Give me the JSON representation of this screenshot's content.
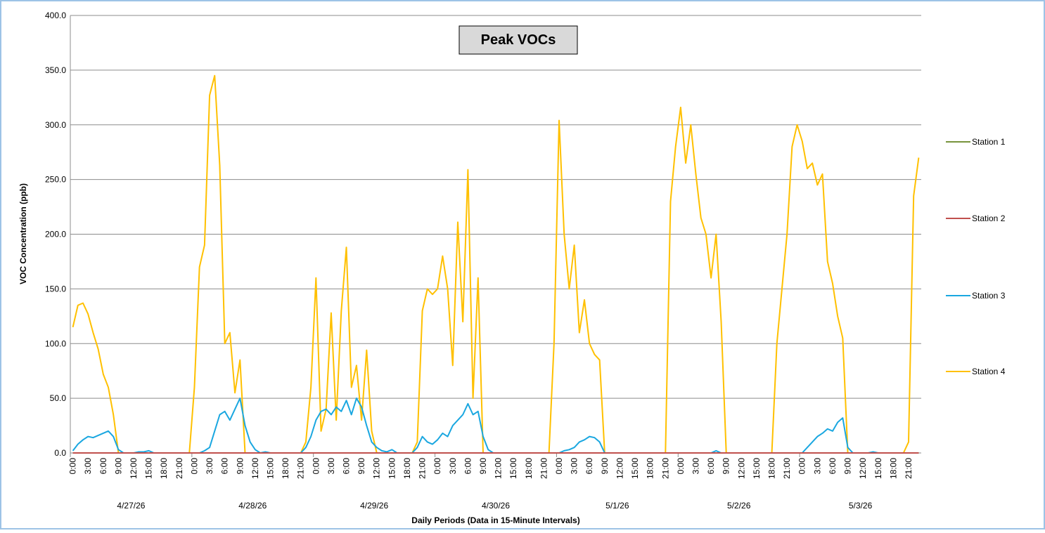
{
  "chart_data": {
    "type": "line",
    "title": "Peak VOCs",
    "x_label": "Daily Periods (Data in 15-Minute Intervals)",
    "y_label": "VOC Concentration (ppb)",
    "groups": [
      "4/27/26",
      "4/28/26",
      "4/29/26",
      "4/30/26",
      "5/1/26",
      "5/2/26",
      "5/3/26"
    ],
    "categories": [
      "0:00",
      null,
      null,
      "3:00",
      null,
      null,
      "6:00",
      null,
      null,
      "9:00",
      null,
      null,
      "12:00",
      null,
      null,
      "15:00",
      null,
      null,
      "18:00",
      null,
      null,
      "21:00",
      null,
      null,
      "0:00",
      null,
      null,
      "3:00",
      null,
      null,
      "6:00",
      null,
      null,
      "9:00",
      null,
      null,
      "12:00",
      null,
      null,
      "15:00",
      null,
      null,
      "18:00",
      null,
      null,
      "21:00",
      null,
      null,
      "0:00",
      null,
      null,
      "3:00",
      null,
      null,
      "6:00",
      null,
      null,
      "9:00",
      null,
      null,
      "12:00",
      null,
      null,
      "15:00",
      null,
      null,
      "18:00",
      null,
      null,
      "21:00",
      null,
      null,
      "0:00",
      null,
      null,
      "3:00",
      null,
      null,
      "6:00",
      null,
      null,
      "9:00",
      null,
      null,
      "12:00",
      null,
      null,
      "15:00",
      null,
      null,
      "18:00",
      null,
      null,
      "21:00",
      null,
      null,
      "0:00",
      null,
      null,
      "3:00",
      null,
      null,
      "6:00",
      null,
      null,
      "9:00",
      null,
      null,
      "12:00",
      null,
      null,
      "15:00",
      null,
      null,
      "18:00",
      null,
      null,
      "21:00",
      null,
      null,
      "0:00",
      null,
      null,
      "3:00",
      null,
      null,
      "6:00",
      null,
      null,
      "9:00",
      null,
      null,
      "12:00",
      null,
      null,
      "15:00",
      null,
      null,
      "18:00",
      null,
      null,
      "21:00",
      null,
      null,
      "0:00",
      null,
      null,
      "3:00",
      null,
      null,
      "6:00",
      null,
      null,
      "9:00",
      null,
      null,
      "12:00",
      null,
      null,
      "15:00",
      null,
      null,
      "18:00",
      null,
      null,
      "21:00",
      null,
      null
    ],
    "series": [
      {
        "name": "Station 1",
        "color": "#77933c",
        "values": [
          0,
          0,
          0,
          0,
          0,
          0,
          0,
          0,
          0,
          0,
          0,
          0,
          0,
          0,
          0,
          0,
          0,
          0,
          0,
          0,
          0,
          0,
          0,
          0,
          0,
          0,
          0,
          0,
          0,
          0,
          0,
          0,
          0,
          0,
          0,
          0,
          0,
          0,
          0,
          0,
          0,
          0,
          0,
          0,
          0,
          0,
          0,
          0,
          0,
          0,
          0,
          0,
          0,
          0,
          0,
          0,
          0,
          0,
          0,
          0,
          0,
          0,
          0,
          0,
          0,
          0,
          0,
          0,
          0,
          0,
          0,
          0,
          0,
          0,
          0,
          0,
          0,
          0,
          0,
          0,
          0,
          0,
          0,
          0,
          0,
          0,
          0,
          0,
          0,
          0,
          0,
          0,
          0,
          0,
          0,
          0,
          0,
          0,
          0,
          0,
          0,
          0,
          0,
          0,
          0,
          0,
          0,
          0,
          0,
          0,
          0,
          0,
          0,
          0,
          0,
          0,
          0,
          0,
          0,
          0,
          0,
          0,
          0,
          0,
          0,
          0,
          0,
          0,
          0,
          0,
          0,
          0,
          0,
          0,
          0,
          0,
          0,
          0,
          0,
          0,
          0,
          0,
          0,
          0,
          0,
          0,
          0,
          0,
          0,
          0,
          0,
          0,
          0,
          0,
          0,
          0,
          0,
          0,
          0,
          0,
          0,
          0,
          0,
          0,
          0,
          0,
          0,
          0
        ]
      },
      {
        "name": "Station 2",
        "color": "#c0504d",
        "values": [
          0,
          0,
          0,
          0,
          0,
          0,
          0,
          0,
          0,
          0,
          0,
          0,
          0,
          0,
          0,
          0,
          0,
          0,
          0,
          0,
          0,
          0,
          0,
          0,
          0,
          0,
          0,
          0,
          0,
          0,
          0,
          0,
          0,
          0,
          0,
          0,
          0,
          0,
          0,
          0,
          0,
          0,
          0,
          0,
          0,
          0,
          0,
          0,
          0,
          0,
          0,
          0,
          0,
          0,
          0,
          0,
          0,
          0,
          0,
          0,
          0,
          0,
          0,
          0,
          0,
          0,
          0,
          0,
          0,
          0,
          0,
          0,
          0,
          0,
          0,
          0,
          0,
          0,
          0,
          0,
          0,
          0,
          0,
          0,
          0,
          0,
          0,
          0,
          0,
          0,
          0,
          0,
          0,
          0,
          0,
          0,
          0,
          0,
          0,
          0,
          0,
          0,
          0,
          0,
          0,
          0,
          0,
          0,
          0,
          0,
          0,
          0,
          0,
          0,
          0,
          0,
          0,
          0,
          0,
          0,
          0,
          0,
          0,
          0,
          0,
          0,
          0,
          0,
          0,
          0,
          0,
          0,
          0,
          0,
          0,
          0,
          0,
          0,
          0,
          0,
          0,
          0,
          0,
          0,
          0,
          0,
          0,
          0,
          0,
          0,
          0,
          0,
          0,
          0,
          0,
          0,
          0,
          0,
          0,
          0,
          0,
          0,
          0,
          0,
          0,
          0,
          0,
          0
        ]
      },
      {
        "name": "Station 3",
        "color": "#1aa7e0",
        "values": [
          2,
          8,
          12,
          15,
          14,
          16,
          18,
          20,
          15,
          3,
          0,
          0,
          0,
          1,
          1,
          2,
          0,
          0,
          0,
          0,
          0,
          0,
          0,
          0,
          0,
          0,
          2,
          5,
          20,
          35,
          38,
          30,
          40,
          50,
          25,
          10,
          3,
          0,
          1,
          0,
          0,
          0,
          0,
          0,
          0,
          0,
          5,
          15,
          30,
          38,
          40,
          35,
          42,
          38,
          48,
          35,
          50,
          42,
          25,
          10,
          5,
          2,
          1,
          3,
          0,
          0,
          0,
          0,
          5,
          15,
          10,
          8,
          12,
          18,
          15,
          25,
          30,
          35,
          45,
          35,
          38,
          15,
          3,
          0,
          0,
          0,
          0,
          0,
          0,
          0,
          0,
          0,
          0,
          0,
          0,
          0,
          0,
          2,
          3,
          5,
          10,
          12,
          15,
          14,
          10,
          0,
          0,
          0,
          0,
          0,
          0,
          0,
          0,
          0,
          0,
          0,
          0,
          0,
          0,
          0,
          0,
          0,
          0,
          0,
          0,
          0,
          0,
          2,
          0,
          0,
          0,
          0,
          0,
          0,
          0,
          0,
          0,
          0,
          0,
          0,
          0,
          0,
          0,
          0,
          0,
          5,
          10,
          15,
          18,
          22,
          20,
          28,
          32,
          5,
          0,
          0,
          0,
          0,
          1,
          0,
          0,
          0,
          0,
          0,
          0,
          0,
          0,
          0
        ]
      },
      {
        "name": "Station 4",
        "color": "#ffc000",
        "values": [
          115,
          135,
          137,
          127,
          110,
          95,
          72,
          60,
          35,
          0,
          0,
          0,
          0,
          0,
          0,
          0,
          0,
          0,
          0,
          0,
          0,
          0,
          0,
          0,
          60,
          170,
          190,
          327,
          345,
          263,
          100,
          110,
          55,
          85,
          0,
          0,
          0,
          0,
          0,
          0,
          0,
          0,
          0,
          0,
          0,
          0,
          10,
          60,
          160,
          20,
          40,
          128,
          30,
          130,
          188,
          60,
          80,
          30,
          94,
          20,
          0,
          0,
          0,
          0,
          0,
          0,
          0,
          0,
          10,
          130,
          150,
          145,
          150,
          180,
          150,
          80,
          211,
          120,
          259,
          50,
          160,
          0,
          0,
          0,
          0,
          0,
          0,
          0,
          0,
          0,
          0,
          0,
          0,
          0,
          0,
          100,
          304,
          200,
          150,
          190,
          110,
          140,
          100,
          90,
          85,
          0,
          0,
          0,
          0,
          0,
          0,
          0,
          0,
          0,
          0,
          0,
          0,
          0,
          230,
          280,
          316,
          265,
          300,
          255,
          215,
          200,
          160,
          200,
          120,
          0,
          0,
          0,
          0,
          0,
          0,
          0,
          0,
          0,
          0,
          100,
          150,
          200,
          280,
          300,
          285,
          260,
          265,
          245,
          255,
          175,
          155,
          125,
          105,
          0,
          0,
          0,
          0,
          0,
          0,
          0,
          0,
          0,
          0,
          0,
          0,
          10,
          235,
          270
        ]
      }
    ],
    "ylim": [
      0,
      400
    ],
    "yticks": [
      {
        "value": 0,
        "label": "0.0"
      },
      {
        "value": 50,
        "label": "50.0"
      },
      {
        "value": 100,
        "label": "100.0"
      },
      {
        "value": 150,
        "label": "150.0"
      },
      {
        "value": 200,
        "label": "200.0"
      },
      {
        "value": 250,
        "label": "250.0"
      },
      {
        "value": 300,
        "label": "300.0"
      },
      {
        "value": 350,
        "label": "350.0"
      },
      {
        "value": 400,
        "label": "400.0"
      }
    ],
    "grid": true,
    "legend": "right"
  }
}
